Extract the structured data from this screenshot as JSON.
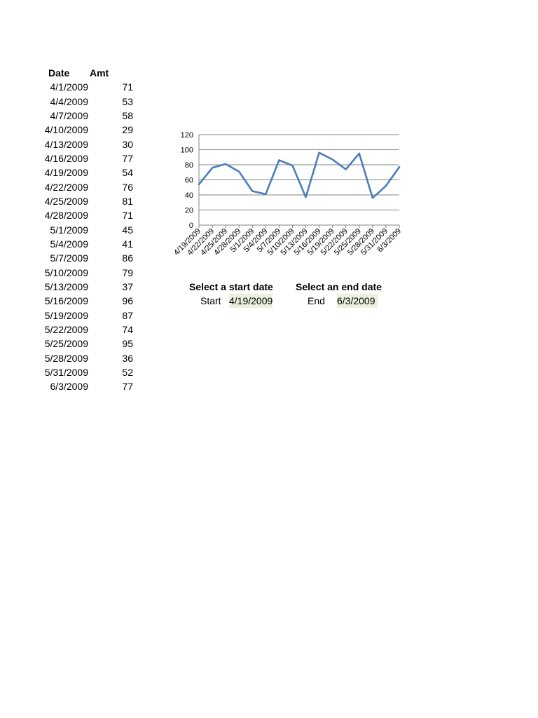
{
  "table": {
    "header_date": "Date",
    "header_amt": "Amt",
    "rows": [
      {
        "date": "4/1/2009",
        "amt": "71"
      },
      {
        "date": "4/4/2009",
        "amt": "53"
      },
      {
        "date": "4/7/2009",
        "amt": "58"
      },
      {
        "date": "4/10/2009",
        "amt": "29"
      },
      {
        "date": "4/13/2009",
        "amt": "30"
      },
      {
        "date": "4/16/2009",
        "amt": "77"
      },
      {
        "date": "4/19/2009",
        "amt": "54"
      },
      {
        "date": "4/22/2009",
        "amt": "76"
      },
      {
        "date": "4/25/2009",
        "amt": "81"
      },
      {
        "date": "4/28/2009",
        "amt": "71"
      },
      {
        "date": "5/1/2009",
        "amt": "45"
      },
      {
        "date": "5/4/2009",
        "amt": "41"
      },
      {
        "date": "5/7/2009",
        "amt": "86"
      },
      {
        "date": "5/10/2009",
        "amt": "79"
      },
      {
        "date": "5/13/2009",
        "amt": "37"
      },
      {
        "date": "5/16/2009",
        "amt": "96"
      },
      {
        "date": "5/19/2009",
        "amt": "87"
      },
      {
        "date": "5/22/2009",
        "amt": "74"
      },
      {
        "date": "5/25/2009",
        "amt": "95"
      },
      {
        "date": "5/28/2009",
        "amt": "36"
      },
      {
        "date": "5/31/2009",
        "amt": "52"
      },
      {
        "date": "6/3/2009",
        "amt": "77"
      }
    ]
  },
  "selectors": {
    "start_title": "Select a start date",
    "start_label": "Start",
    "start_value": "4/19/2009",
    "end_title": "Select an end date",
    "end_label": "End",
    "end_value": "6/3/2009"
  },
  "chart_data": {
    "type": "line",
    "title": "",
    "xlabel": "",
    "ylabel": "",
    "x": [
      "4/19/2009",
      "4/22/2009",
      "4/25/2009",
      "4/28/2009",
      "5/1/2009",
      "5/4/2009",
      "5/7/2009",
      "5/10/2009",
      "5/13/2009",
      "5/16/2009",
      "5/19/2009",
      "5/22/2009",
      "5/25/2009",
      "5/28/2009",
      "5/31/2009",
      "6/3/2009"
    ],
    "series": [
      {
        "values": [
          54,
          76,
          81,
          71,
          45,
          41,
          86,
          79,
          37,
          96,
          87,
          74,
          95,
          36,
          52,
          77
        ]
      }
    ],
    "ylim": [
      0,
      120
    ],
    "yticks": [
      0,
      20,
      40,
      60,
      80,
      100,
      120
    ],
    "grid": true,
    "legend": "none",
    "line_color": "#4a7ebb",
    "grid_color": "#868686"
  }
}
